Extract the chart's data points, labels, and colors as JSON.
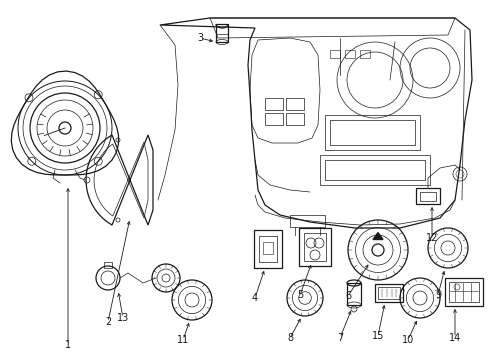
{
  "bg_color": "#ffffff",
  "line_color": "#1a1a1a",
  "figsize": [
    4.89,
    3.6
  ],
  "dpi": 100,
  "lw_main": 0.9,
  "lw_thin": 0.5,
  "lw_thick": 1.2
}
